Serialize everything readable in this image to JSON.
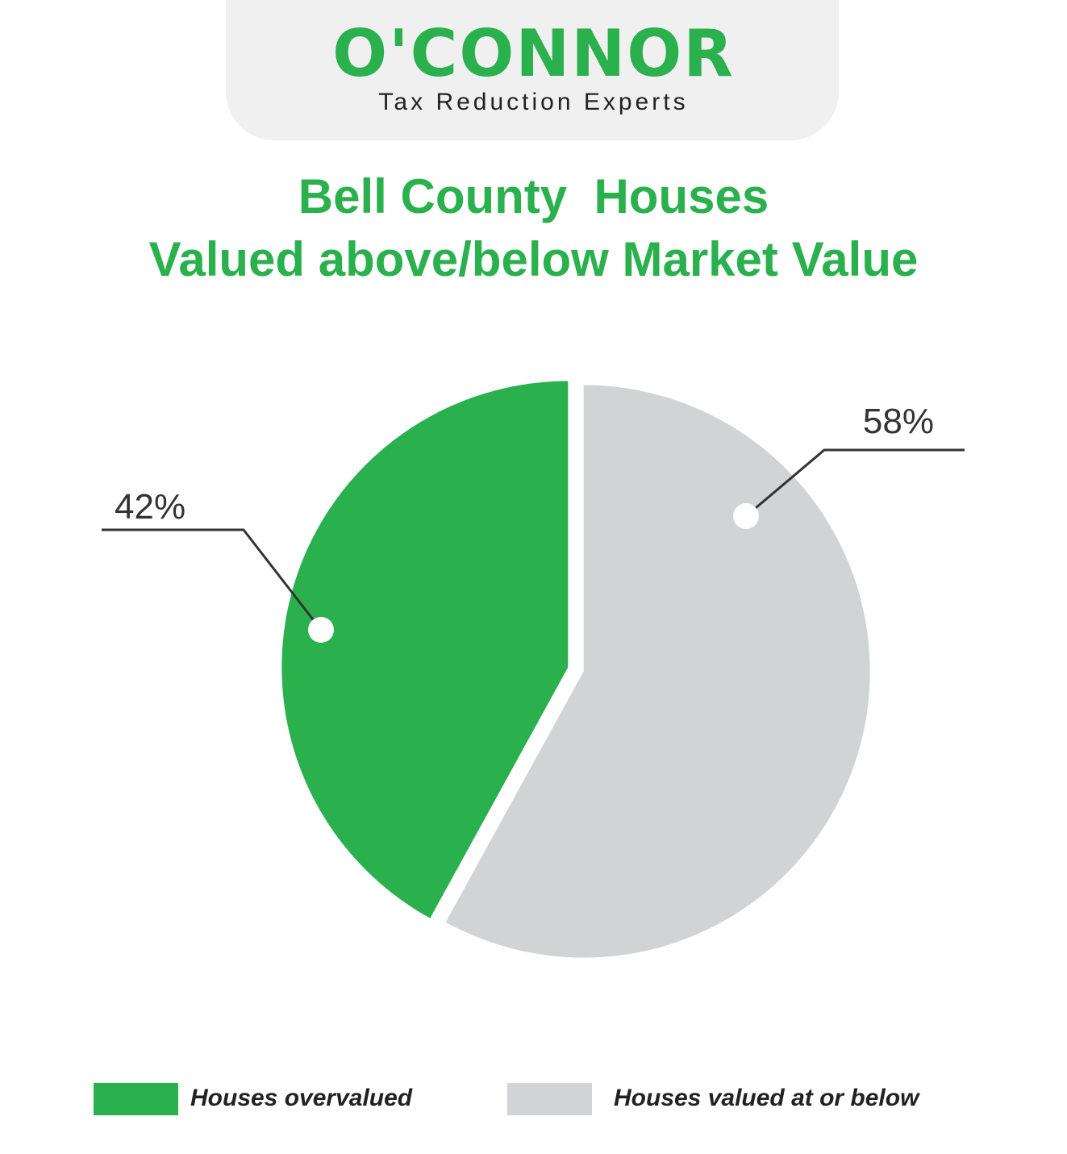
{
  "logo": {
    "name": "O'CONNOR",
    "tagline": "Tax Reduction Experts"
  },
  "title": {
    "line1": "Bell County  Houses",
    "line2": "Valued above/below Market Value"
  },
  "colors": {
    "brand_green": "#2bb04e",
    "gray": "#d2d3d5",
    "logo_bg": "#f0f0f0"
  },
  "chart_data": {
    "type": "pie",
    "title": "Bell County  Houses Valued above/below Market Value",
    "slices": [
      {
        "name": "Houses overvalued",
        "value": 42,
        "label": "42%",
        "color": "#2bb04e"
      },
      {
        "name": "Houses valued at or below",
        "value": 58,
        "label": "58%",
        "color": "#d2d3d5"
      }
    ],
    "legend_position": "bottom"
  },
  "legend": [
    {
      "label": "Houses overvalued",
      "color": "#2bb04e"
    },
    {
      "label": "Houses valued at or below",
      "color": "#d2d3d5"
    }
  ]
}
